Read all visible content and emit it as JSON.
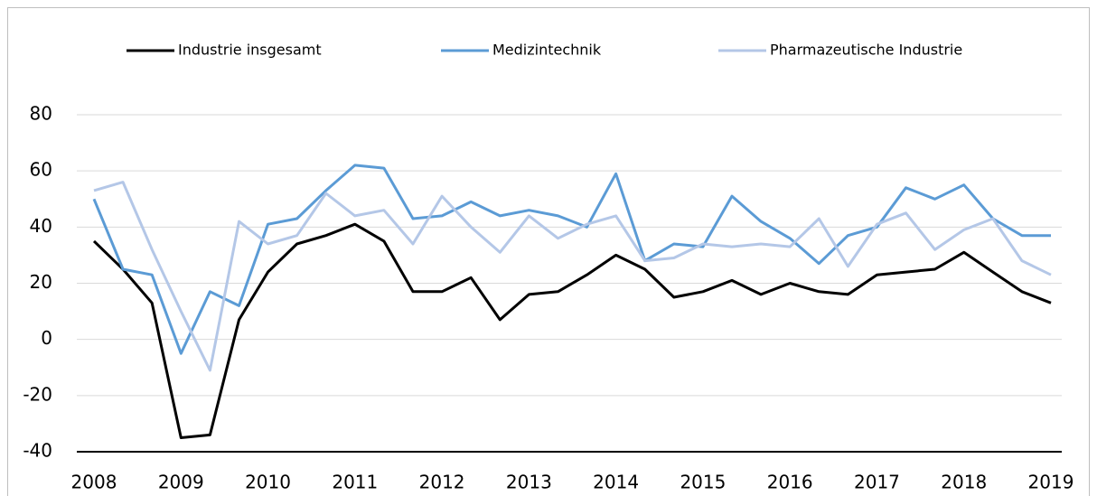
{
  "chart_data": {
    "type": "line",
    "categories": [
      "2008",
      null,
      null,
      "2009",
      null,
      null,
      "2010",
      null,
      null,
      "2011",
      null,
      null,
      "2012",
      null,
      null,
      "2013",
      null,
      null,
      "2014",
      null,
      null,
      "2015",
      null,
      null,
      "2016",
      null,
      null,
      "2017",
      null,
      null,
      "2018",
      null,
      null,
      "2019"
    ],
    "series": [
      {
        "name": "Industrie insgesamt",
        "color": "#000000",
        "values": [
          35,
          25,
          13,
          -35,
          -34,
          7,
          24,
          34,
          37,
          41,
          35,
          17,
          17,
          22,
          7,
          16,
          17,
          23,
          30,
          25,
          15,
          17,
          21,
          16,
          20,
          17,
          16,
          23,
          24,
          25,
          31,
          24,
          17,
          13
        ]
      },
      {
        "name": "Medizintechnik",
        "color": "#5b9bd5",
        "values": [
          50,
          25,
          23,
          -5,
          17,
          12,
          41,
          43,
          53,
          62,
          61,
          43,
          44,
          49,
          44,
          46,
          44,
          40,
          59,
          28,
          34,
          33,
          51,
          42,
          36,
          27,
          37,
          40,
          54,
          50,
          55,
          43,
          37,
          37
        ]
      },
      {
        "name": "Pharmazeutische Industrie",
        "color": "#b4c7e7",
        "values": [
          53,
          56,
          32,
          10,
          -11,
          42,
          34,
          37,
          52,
          44,
          46,
          34,
          51,
          40,
          31,
          44,
          36,
          41,
          44,
          28,
          29,
          34,
          33,
          34,
          33,
          43,
          26,
          41,
          45,
          32,
          39,
          43,
          28,
          23
        ]
      }
    ],
    "ylim": [
      -40,
      80
    ],
    "yticks": [
      -40,
      -20,
      0,
      20,
      40,
      60,
      80
    ],
    "grid": true,
    "legend": "top"
  }
}
